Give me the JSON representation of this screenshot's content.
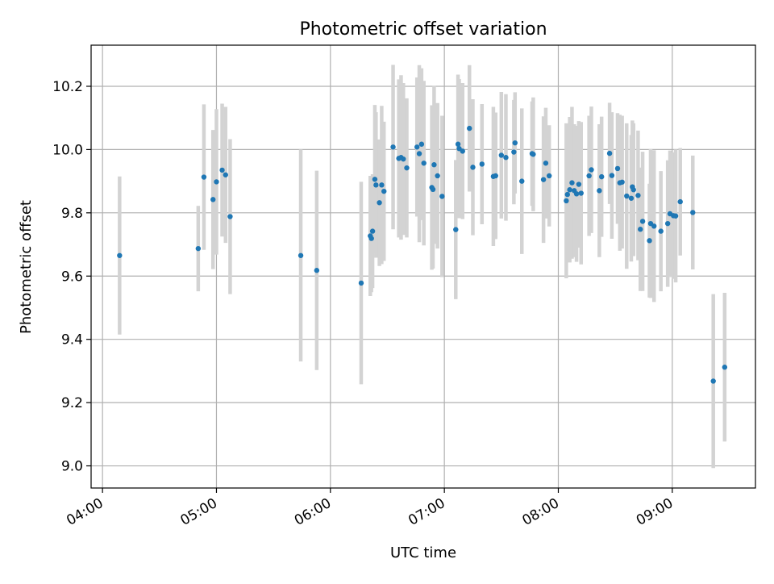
{
  "chart_data": {
    "type": "scatter",
    "title": "Photometric offset variation",
    "xlabel": "UTC time",
    "ylabel": "Photometric offset",
    "x_unit": "hours UTC (decimal)",
    "xlim": [
      3.9,
      9.73
    ],
    "ylim": [
      8.93,
      10.33
    ],
    "grid": true,
    "x_ticks": [
      4,
      5,
      6,
      7,
      8,
      9
    ],
    "x_tick_labels": [
      "04:00",
      "05:00",
      "06:00",
      "07:00",
      "08:00",
      "09:00"
    ],
    "y_ticks": [
      9.0,
      9.2,
      9.4,
      9.6,
      9.8,
      10.0,
      10.2
    ],
    "y_tick_labels": [
      "9.0",
      "9.2",
      "9.4",
      "9.6",
      "9.8",
      "10.0",
      "10.2"
    ],
    "marker_color": "#1f77b4",
    "errorbar_color": "#d3d3d3",
    "series": [
      {
        "points": [
          {
            "x": 4.15,
            "y": 9.665,
            "err": 0.25
          },
          {
            "x": 4.84,
            "y": 9.687,
            "err": 0.135
          },
          {
            "x": 4.89,
            "y": 9.913,
            "err": 0.23
          },
          {
            "x": 4.97,
            "y": 9.842,
            "err": 0.22
          },
          {
            "x": 5.0,
            "y": 9.898,
            "err": 0.23
          },
          {
            "x": 5.05,
            "y": 9.935,
            "err": 0.21
          },
          {
            "x": 5.08,
            "y": 9.92,
            "err": 0.215
          },
          {
            "x": 5.12,
            "y": 9.788,
            "err": 0.245
          },
          {
            "x": 5.74,
            "y": 9.665,
            "err": 0.335
          },
          {
            "x": 5.88,
            "y": 9.618,
            "err": 0.315
          },
          {
            "x": 6.27,
            "y": 9.578,
            "err": 0.32
          },
          {
            "x": 6.35,
            "y": 9.727,
            "err": 0.19
          },
          {
            "x": 6.36,
            "y": 9.719,
            "err": 0.17
          },
          {
            "x": 6.37,
            "y": 9.742,
            "err": 0.18
          },
          {
            "x": 6.39,
            "y": 9.906,
            "err": 0.235
          },
          {
            "x": 6.4,
            "y": 9.888,
            "err": 0.23
          },
          {
            "x": 6.43,
            "y": 9.832,
            "err": 0.2
          },
          {
            "x": 6.45,
            "y": 9.888,
            "err": 0.25
          },
          {
            "x": 6.47,
            "y": 9.868,
            "err": 0.22
          },
          {
            "x": 6.55,
            "y": 10.008,
            "err": 0.26
          },
          {
            "x": 6.6,
            "y": 9.972,
            "err": 0.25
          },
          {
            "x": 6.62,
            "y": 9.975,
            "err": 0.26
          },
          {
            "x": 6.64,
            "y": 9.97,
            "err": 0.24
          },
          {
            "x": 6.67,
            "y": 9.942,
            "err": 0.22
          },
          {
            "x": 6.76,
            "y": 10.008,
            "err": 0.22
          },
          {
            "x": 6.78,
            "y": 9.987,
            "err": 0.28
          },
          {
            "x": 6.8,
            "y": 10.017,
            "err": 0.24
          },
          {
            "x": 6.82,
            "y": 9.957,
            "err": 0.26
          },
          {
            "x": 6.89,
            "y": 9.88,
            "err": 0.26
          },
          {
            "x": 6.9,
            "y": 9.874,
            "err": 0.25
          },
          {
            "x": 6.91,
            "y": 9.952,
            "err": 0.25
          },
          {
            "x": 6.94,
            "y": 9.917,
            "err": 0.23
          },
          {
            "x": 6.98,
            "y": 9.852,
            "err": 0.255
          },
          {
            "x": 7.1,
            "y": 9.747,
            "err": 0.22
          },
          {
            "x": 7.12,
            "y": 10.017,
            "err": 0.22
          },
          {
            "x": 7.13,
            "y": 10.003,
            "err": 0.22
          },
          {
            "x": 7.16,
            "y": 9.995,
            "err": 0.215
          },
          {
            "x": 7.22,
            "y": 10.067,
            "err": 0.2
          },
          {
            "x": 7.25,
            "y": 9.944,
            "err": 0.215
          },
          {
            "x": 7.33,
            "y": 9.954,
            "err": 0.19
          },
          {
            "x": 7.43,
            "y": 9.915,
            "err": 0.22
          },
          {
            "x": 7.45,
            "y": 9.917,
            "err": 0.2
          },
          {
            "x": 7.5,
            "y": 9.982,
            "err": 0.2
          },
          {
            "x": 7.54,
            "y": 9.975,
            "err": 0.2
          },
          {
            "x": 7.61,
            "y": 9.992,
            "err": 0.165
          },
          {
            "x": 7.62,
            "y": 10.021,
            "err": 0.16
          },
          {
            "x": 7.68,
            "y": 9.9,
            "err": 0.23
          },
          {
            "x": 7.77,
            "y": 9.987,
            "err": 0.165
          },
          {
            "x": 7.78,
            "y": 9.985,
            "err": 0.18
          },
          {
            "x": 7.87,
            "y": 9.905,
            "err": 0.2
          },
          {
            "x": 7.89,
            "y": 9.957,
            "err": 0.175
          },
          {
            "x": 7.92,
            "y": 9.917,
            "err": 0.16
          },
          {
            "x": 8.07,
            "y": 9.838,
            "err": 0.245
          },
          {
            "x": 8.08,
            "y": 9.858,
            "err": 0.2
          },
          {
            "x": 8.1,
            "y": 9.873,
            "err": 0.23
          },
          {
            "x": 8.12,
            "y": 9.895,
            "err": 0.24
          },
          {
            "x": 8.14,
            "y": 9.87,
            "err": 0.21
          },
          {
            "x": 8.16,
            "y": 9.86,
            "err": 0.215
          },
          {
            "x": 8.18,
            "y": 9.89,
            "err": 0.2
          },
          {
            "x": 8.2,
            "y": 9.862,
            "err": 0.225
          },
          {
            "x": 8.27,
            "y": 9.917,
            "err": 0.19
          },
          {
            "x": 8.29,
            "y": 9.936,
            "err": 0.2
          },
          {
            "x": 8.36,
            "y": 9.87,
            "err": 0.21
          },
          {
            "x": 8.38,
            "y": 9.914,
            "err": 0.19
          },
          {
            "x": 8.45,
            "y": 9.988,
            "err": 0.16
          },
          {
            "x": 8.47,
            "y": 9.918,
            "err": 0.2
          },
          {
            "x": 8.52,
            "y": 9.94,
            "err": 0.175
          },
          {
            "x": 8.54,
            "y": 9.895,
            "err": 0.215
          },
          {
            "x": 8.56,
            "y": 9.897,
            "err": 0.21
          },
          {
            "x": 8.6,
            "y": 9.853,
            "err": 0.23
          },
          {
            "x": 8.64,
            "y": 9.846,
            "err": 0.2
          },
          {
            "x": 8.65,
            "y": 9.882,
            "err": 0.21
          },
          {
            "x": 8.66,
            "y": 9.873,
            "err": 0.21
          },
          {
            "x": 8.7,
            "y": 9.855,
            "err": 0.205
          },
          {
            "x": 8.72,
            "y": 9.748,
            "err": 0.195
          },
          {
            "x": 8.74,
            "y": 9.773,
            "err": 0.22
          },
          {
            "x": 8.8,
            "y": 9.712,
            "err": 0.18
          },
          {
            "x": 8.81,
            "y": 9.766,
            "err": 0.235
          },
          {
            "x": 8.84,
            "y": 9.758,
            "err": 0.24
          },
          {
            "x": 8.9,
            "y": 9.742,
            "err": 0.19
          },
          {
            "x": 8.96,
            "y": 9.766,
            "err": 0.2
          },
          {
            "x": 8.98,
            "y": 9.797,
            "err": 0.2
          },
          {
            "x": 9.01,
            "y": 9.791,
            "err": 0.2
          },
          {
            "x": 9.03,
            "y": 9.79,
            "err": 0.21
          },
          {
            "x": 9.07,
            "y": 9.835,
            "err": 0.17
          },
          {
            "x": 9.18,
            "y": 9.801,
            "err": 0.18
          },
          {
            "x": 9.36,
            "y": 9.268,
            "err": 0.275
          },
          {
            "x": 9.46,
            "y": 9.312,
            "err": 0.235
          }
        ]
      }
    ]
  }
}
